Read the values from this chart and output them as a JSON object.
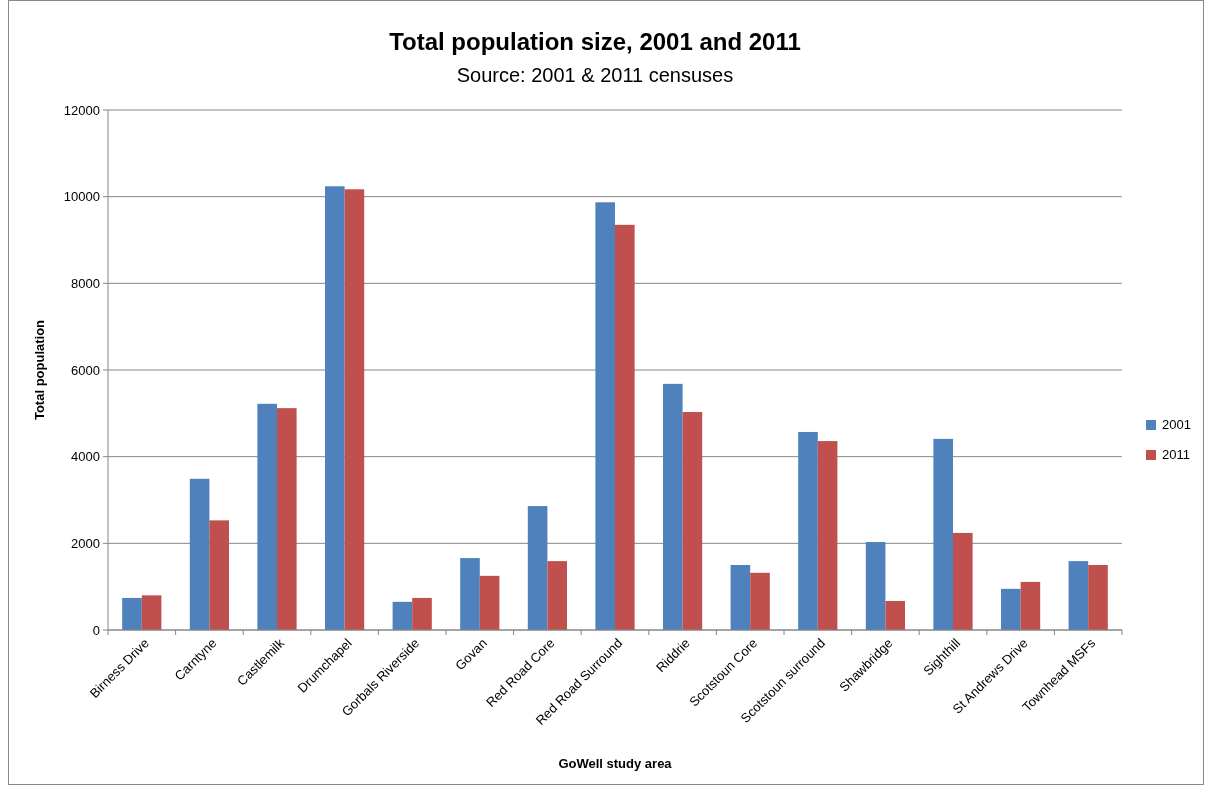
{
  "chart_data": {
    "type": "bar",
    "title": "Total population size, 2001 and 2011",
    "subtitle": "Source: 2001 & 2011 censuses",
    "xlabel": "GoWell study area",
    "ylabel": "Total population",
    "categories": [
      "Birness Drive",
      "Carntyne",
      "Castlemilk",
      "Drumchapel",
      "Gorbals Riverside",
      "Govan",
      "Red Road Core",
      "Red Road Surround",
      "Riddrie",
      "Scotstoun Core",
      "Scotstoun surround",
      "Shawbridge",
      "Sighthill",
      "St Andrews Drive",
      "Townhead MSFs"
    ],
    "series": [
      {
        "name": "2001",
        "color": "#4f81bd",
        "values": [
          740,
          3490,
          5220,
          10240,
          650,
          1660,
          2860,
          9870,
          5680,
          1500,
          4570,
          2030,
          4410,
          950,
          1590
        ]
      },
      {
        "name": "2011",
        "color": "#c0504d",
        "values": [
          800,
          2530,
          5120,
          10170,
          740,
          1250,
          1590,
          9350,
          5030,
          1320,
          4360,
          670,
          2240,
          1110,
          1500
        ]
      }
    ],
    "ylim": [
      0,
      12000
    ],
    "yticks": [
      0,
      2000,
      4000,
      6000,
      8000,
      10000,
      12000
    ],
    "grid": "y",
    "legend": "right"
  }
}
